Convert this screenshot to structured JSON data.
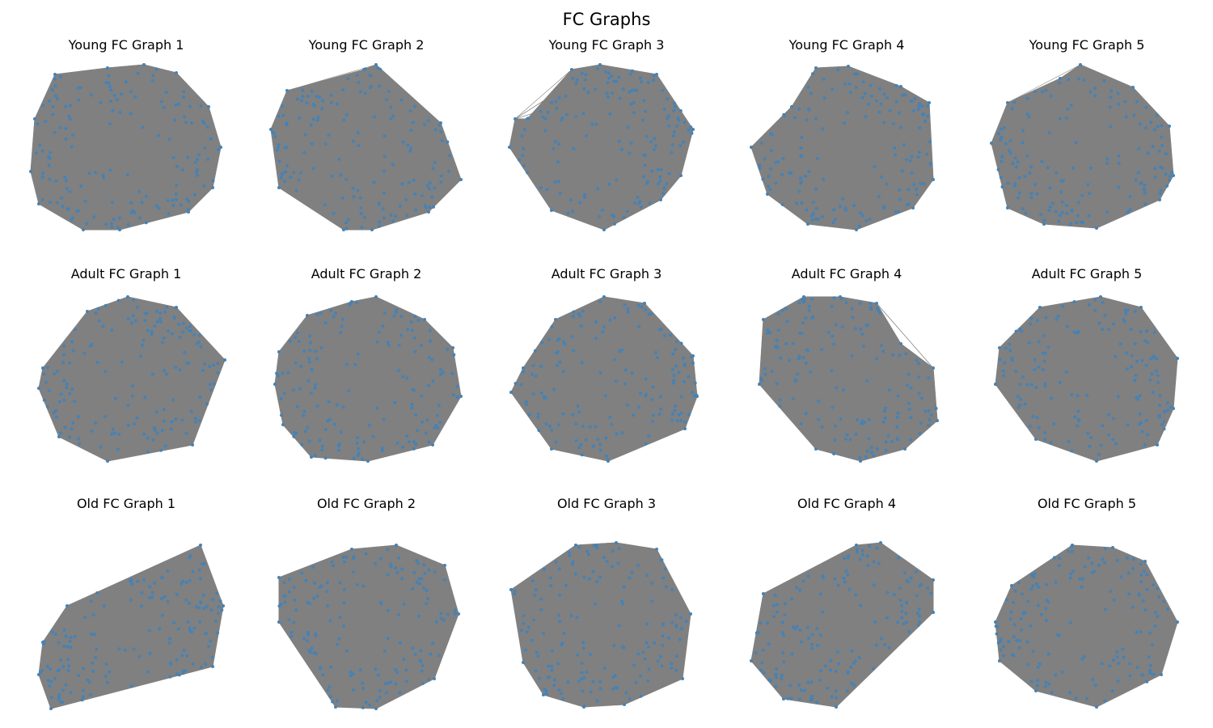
{
  "figure": {
    "title": "FC Graphs"
  },
  "style": {
    "edge_color": "#808080",
    "node_color": "#4682b4"
  },
  "panels": [
    {
      "title": "Young FC Graph 1"
    },
    {
      "title": "Young FC Graph 2"
    },
    {
      "title": "Young FC Graph 3"
    },
    {
      "title": "Young FC Graph 4"
    },
    {
      "title": "Young FC Graph 5"
    },
    {
      "title": "Adult FC Graph 1"
    },
    {
      "title": "Adult FC Graph 2"
    },
    {
      "title": "Adult FC Graph 3"
    },
    {
      "title": "Adult FC Graph 4"
    },
    {
      "title": "Adult FC Graph 5"
    },
    {
      "title": "Old FC Graph 1"
    },
    {
      "title": "Old FC Graph 2"
    },
    {
      "title": "Old FC Graph 3"
    },
    {
      "title": "Old FC Graph 4"
    },
    {
      "title": "Old FC Graph 5"
    }
  ]
}
